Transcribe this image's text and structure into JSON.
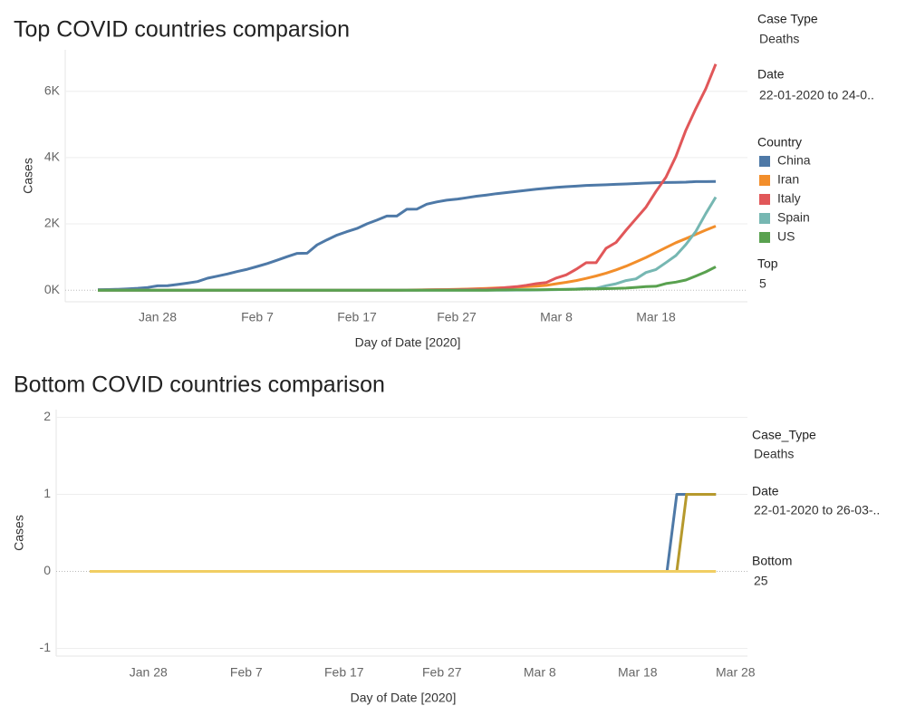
{
  "chart_data": [
    {
      "type": "line",
      "title": "Top COVID countries comparsion",
      "x_label": "Day of Date [2020]",
      "y_label": "Cases",
      "x": [
        "Jan 22",
        "Jan 23",
        "Jan 24",
        "Jan 25",
        "Jan 26",
        "Jan 27",
        "Jan 28",
        "Jan 29",
        "Jan 30",
        "Jan 31",
        "Feb 1",
        "Feb 2",
        "Feb 3",
        "Feb 4",
        "Feb 5",
        "Feb 6",
        "Feb 7",
        "Feb 8",
        "Feb 9",
        "Feb 10",
        "Feb 11",
        "Feb 12",
        "Feb 13",
        "Feb 14",
        "Feb 15",
        "Feb 16",
        "Feb 17",
        "Feb 18",
        "Feb 19",
        "Feb 20",
        "Feb 21",
        "Feb 22",
        "Feb 23",
        "Feb 24",
        "Feb 25",
        "Feb 26",
        "Feb 27",
        "Feb 28",
        "Feb 29",
        "Mar 1",
        "Mar 2",
        "Mar 3",
        "Mar 4",
        "Mar 5",
        "Mar 6",
        "Mar 7",
        "Mar 8",
        "Mar 9",
        "Mar 10",
        "Mar 11",
        "Mar 12",
        "Mar 13",
        "Mar 14",
        "Mar 15",
        "Mar 16",
        "Mar 17",
        "Mar 18",
        "Mar 19",
        "Mar 20",
        "Mar 21",
        "Mar 22",
        "Mar 23",
        "Mar 24"
      ],
      "xticks": [
        "Jan 28",
        "Feb 7",
        "Feb 17",
        "Feb 27",
        "Mar 8",
        "Mar 18"
      ],
      "ylim": [
        -350,
        7250
      ],
      "yticks": [
        {
          "value": 0,
          "label": "0K"
        },
        {
          "value": 2000,
          "label": "2K"
        },
        {
          "value": 4000,
          "label": "4K"
        },
        {
          "value": 6000,
          "label": "6K"
        }
      ],
      "grid": true,
      "legend_title": "Country",
      "series": [
        {
          "name": "China",
          "color": "#4e79a7",
          "values": [
            17,
            18,
            26,
            42,
            56,
            82,
            131,
            133,
            171,
            213,
            259,
            361,
            425,
            490,
            562,
            632,
            717,
            804,
            904,
            1011,
            1111,
            1116,
            1368,
            1520,
            1662,
            1765,
            1863,
            2002,
            2114,
            2236,
            2236,
            2441,
            2443,
            2593,
            2663,
            2715,
            2744,
            2788,
            2835,
            2870,
            2912,
            2945,
            2981,
            3013,
            3045,
            3073,
            3099,
            3123,
            3139,
            3161,
            3172,
            3180,
            3193,
            3203,
            3217,
            3230,
            3241,
            3249,
            3253,
            3259,
            3274,
            3274,
            3281
          ]
        },
        {
          "name": "Iran",
          "color": "#f28e2b",
          "values": [
            0,
            0,
            0,
            0,
            0,
            0,
            0,
            0,
            0,
            0,
            0,
            0,
            0,
            0,
            0,
            0,
            0,
            0,
            0,
            0,
            0,
            0,
            0,
            0,
            0,
            0,
            0,
            0,
            2,
            2,
            4,
            5,
            8,
            12,
            16,
            19,
            26,
            34,
            43,
            54,
            66,
            77,
            92,
            107,
            124,
            145,
            194,
            237,
            291,
            354,
            429,
            514,
            611,
            724,
            853,
            988,
            1135,
            1284,
            1433,
            1556,
            1685,
            1812,
            1934
          ]
        },
        {
          "name": "Italy",
          "color": "#e15759",
          "values": [
            0,
            0,
            0,
            0,
            0,
            0,
            0,
            0,
            0,
            0,
            0,
            0,
            0,
            0,
            0,
            0,
            0,
            0,
            0,
            0,
            0,
            0,
            0,
            0,
            0,
            0,
            0,
            0,
            0,
            0,
            1,
            2,
            3,
            7,
            10,
            12,
            17,
            21,
            29,
            34,
            52,
            79,
            107,
            148,
            197,
            233,
            366,
            463,
            631,
            827,
            827,
            1266,
            1441,
            1809,
            2158,
            2503,
            2978,
            3405,
            4032,
            4825,
            5476,
            6077,
            6820
          ]
        },
        {
          "name": "Spain",
          "color": "#76b7b2",
          "values": [
            0,
            0,
            0,
            0,
            0,
            0,
            0,
            0,
            0,
            0,
            0,
            0,
            0,
            0,
            0,
            0,
            0,
            0,
            0,
            0,
            0,
            0,
            0,
            0,
            0,
            0,
            0,
            0,
            0,
            0,
            0,
            0,
            0,
            0,
            0,
            0,
            0,
            0,
            0,
            0,
            0,
            1,
            2,
            3,
            5,
            10,
            17,
            28,
            35,
            54,
            55,
            133,
            195,
            289,
            342,
            533,
            623,
            830,
            1043,
            1375,
            1772,
            2311,
            2808
          ]
        },
        {
          "name": "US",
          "color": "#59a14f",
          "values": [
            0,
            0,
            0,
            0,
            0,
            0,
            0,
            0,
            0,
            0,
            0,
            0,
            0,
            0,
            0,
            0,
            0,
            0,
            0,
            0,
            0,
            0,
            0,
            0,
            0,
            0,
            0,
            0,
            0,
            0,
            0,
            0,
            0,
            0,
            0,
            0,
            0,
            0,
            1,
            1,
            6,
            7,
            11,
            12,
            14,
            17,
            21,
            22,
            28,
            36,
            40,
            47,
            54,
            63,
            85,
            108,
            118,
            200,
            244,
            307,
            427,
            552,
            706
          ]
        }
      ],
      "filters": [
        {
          "label": "Case Type",
          "value": "Deaths"
        },
        {
          "label": "Date",
          "value": "22-01-2020 to 24-0.."
        },
        {
          "label": "Top",
          "value": "5"
        }
      ]
    },
    {
      "type": "line",
      "title": "Bottom COVID countries comparison",
      "x_label": "Day of Date [2020]",
      "y_label": "Cases",
      "x": [
        "Jan 22",
        "Jan 23",
        "Jan 24",
        "Jan 25",
        "Jan 26",
        "Jan 27",
        "Jan 28",
        "Jan 29",
        "Jan 30",
        "Jan 31",
        "Feb 1",
        "Feb 2",
        "Feb 3",
        "Feb 4",
        "Feb 5",
        "Feb 6",
        "Feb 7",
        "Feb 8",
        "Feb 9",
        "Feb 10",
        "Feb 11",
        "Feb 12",
        "Feb 13",
        "Feb 14",
        "Feb 15",
        "Feb 16",
        "Feb 17",
        "Feb 18",
        "Feb 19",
        "Feb 20",
        "Feb 21",
        "Feb 22",
        "Feb 23",
        "Feb 24",
        "Feb 25",
        "Feb 26",
        "Feb 27",
        "Feb 28",
        "Feb 29",
        "Mar 1",
        "Mar 2",
        "Mar 3",
        "Mar 4",
        "Mar 5",
        "Mar 6",
        "Mar 7",
        "Mar 8",
        "Mar 9",
        "Mar 10",
        "Mar 11",
        "Mar 12",
        "Mar 13",
        "Mar 14",
        "Mar 15",
        "Mar 16",
        "Mar 17",
        "Mar 18",
        "Mar 19",
        "Mar 20",
        "Mar 21",
        "Mar 22",
        "Mar 23",
        "Mar 24",
        "Mar 25",
        "Mar 26"
      ],
      "xticks": [
        "Jan 28",
        "Feb 7",
        "Feb 17",
        "Feb 27",
        "Mar 8",
        "Mar 18",
        "Mar 28"
      ],
      "ylim": [
        -1.1,
        2.1
      ],
      "yticks": [
        -1,
        0,
        1,
        2
      ],
      "grid": true,
      "series": [
        {
          "color": "#4e79a7",
          "values": [
            0,
            0,
            0,
            0,
            0,
            0,
            0,
            0,
            0,
            0,
            0,
            0,
            0,
            0,
            0,
            0,
            0,
            0,
            0,
            0,
            0,
            0,
            0,
            0,
            0,
            0,
            0,
            0,
            0,
            0,
            0,
            0,
            0,
            0,
            0,
            0,
            0,
            0,
            0,
            0,
            0,
            0,
            0,
            0,
            0,
            0,
            0,
            0,
            0,
            0,
            0,
            0,
            0,
            0,
            0,
            0,
            0,
            0,
            0,
            0,
            1,
            1,
            1,
            1,
            1
          ]
        },
        {
          "color": "#b6992d",
          "values": [
            0,
            0,
            0,
            0,
            0,
            0,
            0,
            0,
            0,
            0,
            0,
            0,
            0,
            0,
            0,
            0,
            0,
            0,
            0,
            0,
            0,
            0,
            0,
            0,
            0,
            0,
            0,
            0,
            0,
            0,
            0,
            0,
            0,
            0,
            0,
            0,
            0,
            0,
            0,
            0,
            0,
            0,
            0,
            0,
            0,
            0,
            0,
            0,
            0,
            0,
            0,
            0,
            0,
            0,
            0,
            0,
            0,
            0,
            0,
            0,
            0,
            1,
            1,
            1,
            1
          ]
        },
        {
          "color": "#f1ce63",
          "values": [
            0,
            0,
            0,
            0,
            0,
            0,
            0,
            0,
            0,
            0,
            0,
            0,
            0,
            0,
            0,
            0,
            0,
            0,
            0,
            0,
            0,
            0,
            0,
            0,
            0,
            0,
            0,
            0,
            0,
            0,
            0,
            0,
            0,
            0,
            0,
            0,
            0,
            0,
            0,
            0,
            0,
            0,
            0,
            0,
            0,
            0,
            0,
            0,
            0,
            0,
            0,
            0,
            0,
            0,
            0,
            0,
            0,
            0,
            0,
            0,
            0,
            0,
            0,
            0,
            0
          ]
        }
      ],
      "filters": [
        {
          "label": "Case_Type",
          "value": "Deaths"
        },
        {
          "label": "Date",
          "value": "22-01-2020 to 26-03-.."
        },
        {
          "label": "Bottom",
          "value": "25"
        }
      ]
    }
  ]
}
